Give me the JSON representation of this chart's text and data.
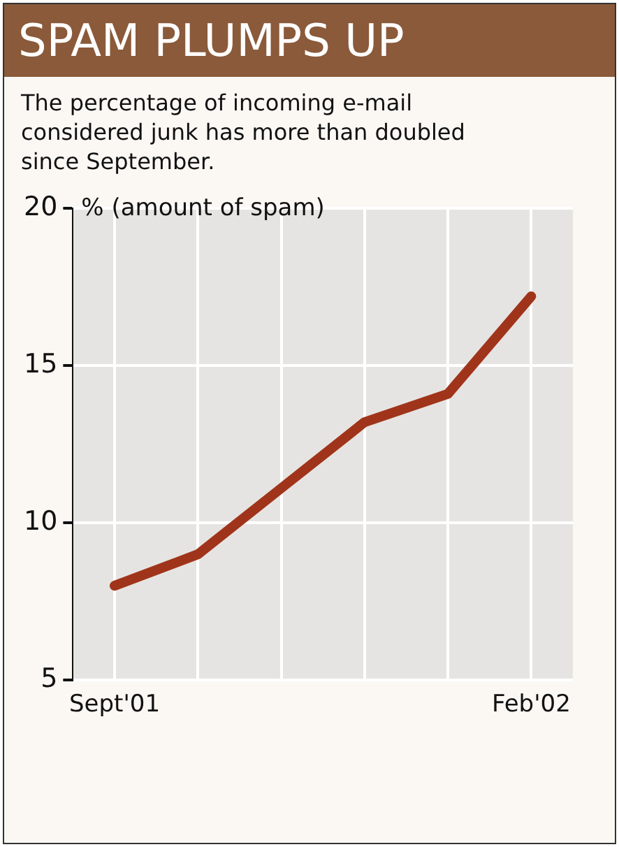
{
  "chart_data": {
    "type": "line",
    "title": "SPAM PLUMPS UP",
    "subtitle": "The percentage of incoming e-mail considered junk has more than doubled since September.",
    "ylabel": "% (amount of spam)",
    "categories": [
      "Sept'01",
      null,
      null,
      null,
      null,
      "Feb'02"
    ],
    "series": [
      {
        "color": "#a0341a",
        "values": [
          8,
          9,
          11.1,
          13.2,
          14.1,
          17.2
        ]
      }
    ],
    "ylim": [
      5,
      20
    ],
    "yticks": [
      5,
      10,
      15,
      20
    ],
    "grid": true,
    "legend": false,
    "marker": "none",
    "line_style": "solid"
  }
}
